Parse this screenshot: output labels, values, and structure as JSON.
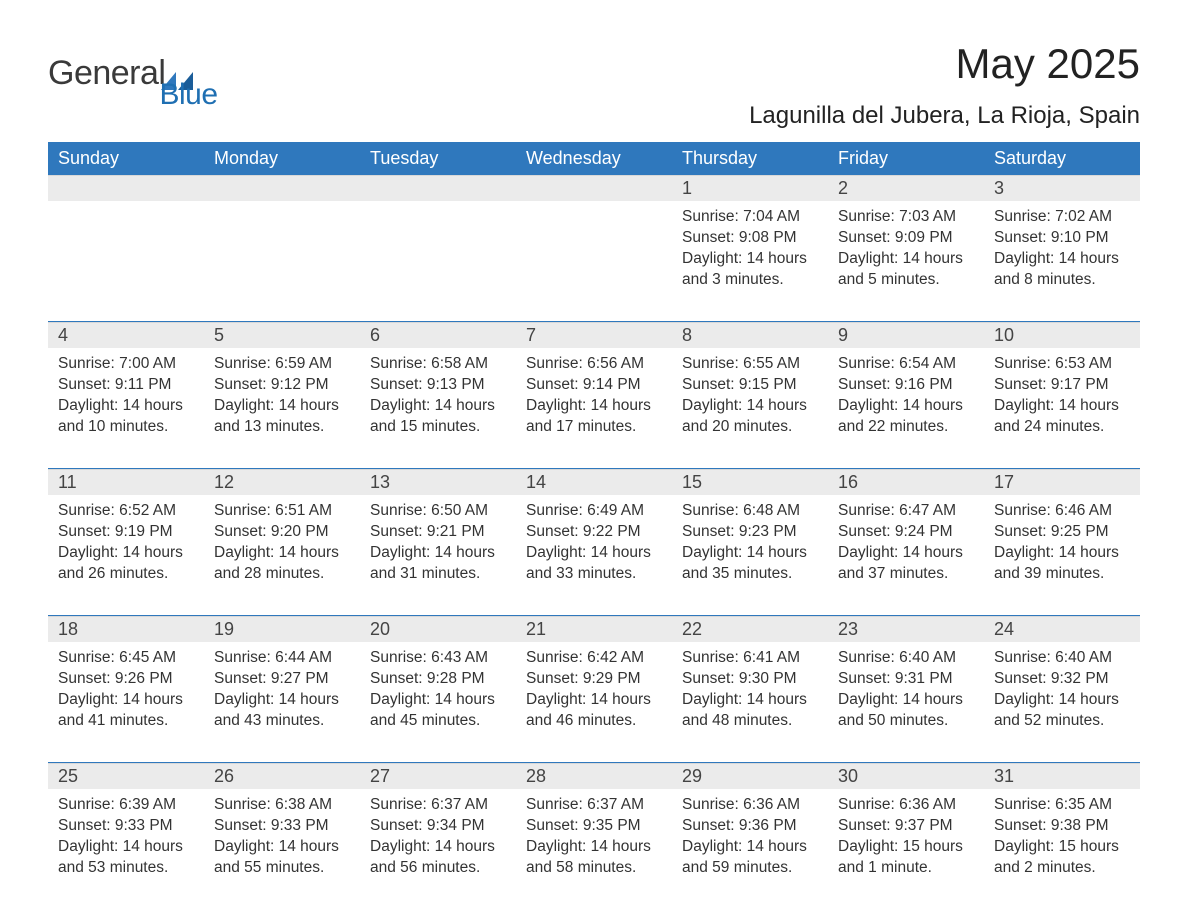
{
  "brand": {
    "word1": "General",
    "word2": "Blue",
    "tri_color": "#1f6fb2",
    "text_color": "#3a3a3a"
  },
  "header": {
    "month_title": "May 2025",
    "location": "Lagunilla del Jubera, La Rioja, Spain"
  },
  "colors": {
    "header_bg": "#2f78bd",
    "header_text": "#ffffff",
    "daynum_bg": "#ebebeb",
    "rule": "#2f78bd",
    "body_text": "#333333",
    "page_bg": "#ffffff"
  },
  "dow": [
    "Sunday",
    "Monday",
    "Tuesday",
    "Wednesday",
    "Thursday",
    "Friday",
    "Saturday"
  ],
  "labels": {
    "sunrise": "Sunrise",
    "sunset": "Sunset",
    "daylight": "Daylight"
  },
  "leading_blanks": 4,
  "days": [
    {
      "n": 1,
      "sunrise": "7:04 AM",
      "sunset": "9:08 PM",
      "daylight": "14 hours and 3 minutes."
    },
    {
      "n": 2,
      "sunrise": "7:03 AM",
      "sunset": "9:09 PM",
      "daylight": "14 hours and 5 minutes."
    },
    {
      "n": 3,
      "sunrise": "7:02 AM",
      "sunset": "9:10 PM",
      "daylight": "14 hours and 8 minutes."
    },
    {
      "n": 4,
      "sunrise": "7:00 AM",
      "sunset": "9:11 PM",
      "daylight": "14 hours and 10 minutes."
    },
    {
      "n": 5,
      "sunrise": "6:59 AM",
      "sunset": "9:12 PM",
      "daylight": "14 hours and 13 minutes."
    },
    {
      "n": 6,
      "sunrise": "6:58 AM",
      "sunset": "9:13 PM",
      "daylight": "14 hours and 15 minutes."
    },
    {
      "n": 7,
      "sunrise": "6:56 AM",
      "sunset": "9:14 PM",
      "daylight": "14 hours and 17 minutes."
    },
    {
      "n": 8,
      "sunrise": "6:55 AM",
      "sunset": "9:15 PM",
      "daylight": "14 hours and 20 minutes."
    },
    {
      "n": 9,
      "sunrise": "6:54 AM",
      "sunset": "9:16 PM",
      "daylight": "14 hours and 22 minutes."
    },
    {
      "n": 10,
      "sunrise": "6:53 AM",
      "sunset": "9:17 PM",
      "daylight": "14 hours and 24 minutes."
    },
    {
      "n": 11,
      "sunrise": "6:52 AM",
      "sunset": "9:19 PM",
      "daylight": "14 hours and 26 minutes."
    },
    {
      "n": 12,
      "sunrise": "6:51 AM",
      "sunset": "9:20 PM",
      "daylight": "14 hours and 28 minutes."
    },
    {
      "n": 13,
      "sunrise": "6:50 AM",
      "sunset": "9:21 PM",
      "daylight": "14 hours and 31 minutes."
    },
    {
      "n": 14,
      "sunrise": "6:49 AM",
      "sunset": "9:22 PM",
      "daylight": "14 hours and 33 minutes."
    },
    {
      "n": 15,
      "sunrise": "6:48 AM",
      "sunset": "9:23 PM",
      "daylight": "14 hours and 35 minutes."
    },
    {
      "n": 16,
      "sunrise": "6:47 AM",
      "sunset": "9:24 PM",
      "daylight": "14 hours and 37 minutes."
    },
    {
      "n": 17,
      "sunrise": "6:46 AM",
      "sunset": "9:25 PM",
      "daylight": "14 hours and 39 minutes."
    },
    {
      "n": 18,
      "sunrise": "6:45 AM",
      "sunset": "9:26 PM",
      "daylight": "14 hours and 41 minutes."
    },
    {
      "n": 19,
      "sunrise": "6:44 AM",
      "sunset": "9:27 PM",
      "daylight": "14 hours and 43 minutes."
    },
    {
      "n": 20,
      "sunrise": "6:43 AM",
      "sunset": "9:28 PM",
      "daylight": "14 hours and 45 minutes."
    },
    {
      "n": 21,
      "sunrise": "6:42 AM",
      "sunset": "9:29 PM",
      "daylight": "14 hours and 46 minutes."
    },
    {
      "n": 22,
      "sunrise": "6:41 AM",
      "sunset": "9:30 PM",
      "daylight": "14 hours and 48 minutes."
    },
    {
      "n": 23,
      "sunrise": "6:40 AM",
      "sunset": "9:31 PM",
      "daylight": "14 hours and 50 minutes."
    },
    {
      "n": 24,
      "sunrise": "6:40 AM",
      "sunset": "9:32 PM",
      "daylight": "14 hours and 52 minutes."
    },
    {
      "n": 25,
      "sunrise": "6:39 AM",
      "sunset": "9:33 PM",
      "daylight": "14 hours and 53 minutes."
    },
    {
      "n": 26,
      "sunrise": "6:38 AM",
      "sunset": "9:33 PM",
      "daylight": "14 hours and 55 minutes."
    },
    {
      "n": 27,
      "sunrise": "6:37 AM",
      "sunset": "9:34 PM",
      "daylight": "14 hours and 56 minutes."
    },
    {
      "n": 28,
      "sunrise": "6:37 AM",
      "sunset": "9:35 PM",
      "daylight": "14 hours and 58 minutes."
    },
    {
      "n": 29,
      "sunrise": "6:36 AM",
      "sunset": "9:36 PM",
      "daylight": "14 hours and 59 minutes."
    },
    {
      "n": 30,
      "sunrise": "6:36 AM",
      "sunset": "9:37 PM",
      "daylight": "15 hours and 1 minute."
    },
    {
      "n": 31,
      "sunrise": "6:35 AM",
      "sunset": "9:38 PM",
      "daylight": "15 hours and 2 minutes."
    }
  ]
}
